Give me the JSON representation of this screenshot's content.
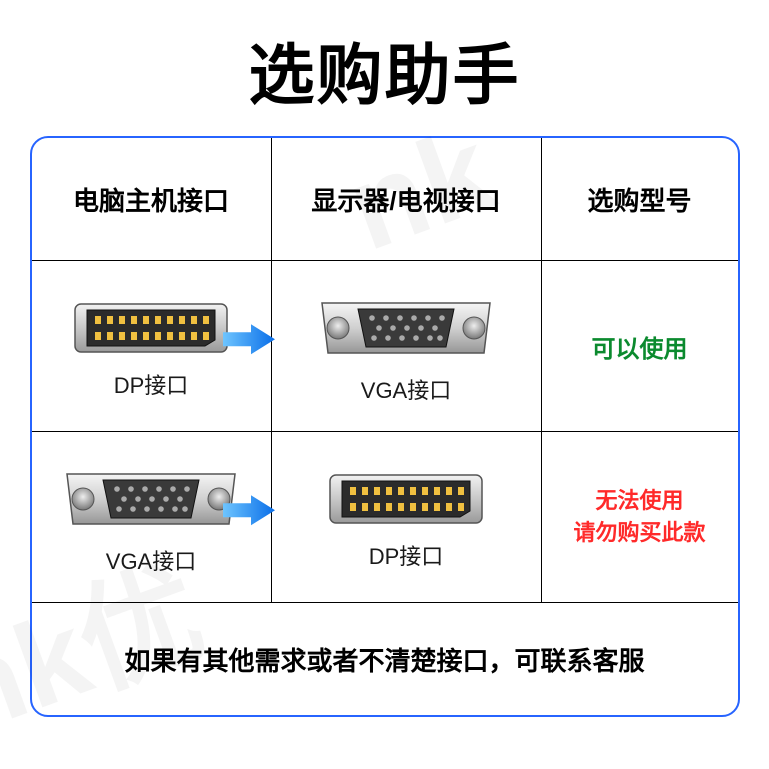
{
  "title": "选购助手",
  "headers": {
    "col1": "电脑主机接口",
    "col2": "显示器/电视接口",
    "col3": "选购型号"
  },
  "rows": [
    {
      "source_port": "DP",
      "source_label": "DP接口",
      "target_port": "VGA",
      "target_label": "VGA接口",
      "status_text": "可以使用",
      "status_style": "ok"
    },
    {
      "source_port": "VGA",
      "source_label": "VGA接口",
      "target_port": "DP",
      "target_label": "DP接口",
      "status_text": "无法使用\n请勿购买此款",
      "status_style": "bad"
    }
  ],
  "footer": "如果有其他需求或者不清楚接口，可联系客服",
  "colors": {
    "border": "#2764ff",
    "text": "#000000",
    "ok": "#0b8a2e",
    "bad": "#ff2a2a",
    "arrow_light": "#3aa8ff",
    "arrow_dark": "#0a6ee8",
    "connector_body": "#3a3a3a",
    "connector_shell_light": "#e8e8e8",
    "connector_shell_dark": "#9a9a9a",
    "pin": "#f0c040"
  }
}
